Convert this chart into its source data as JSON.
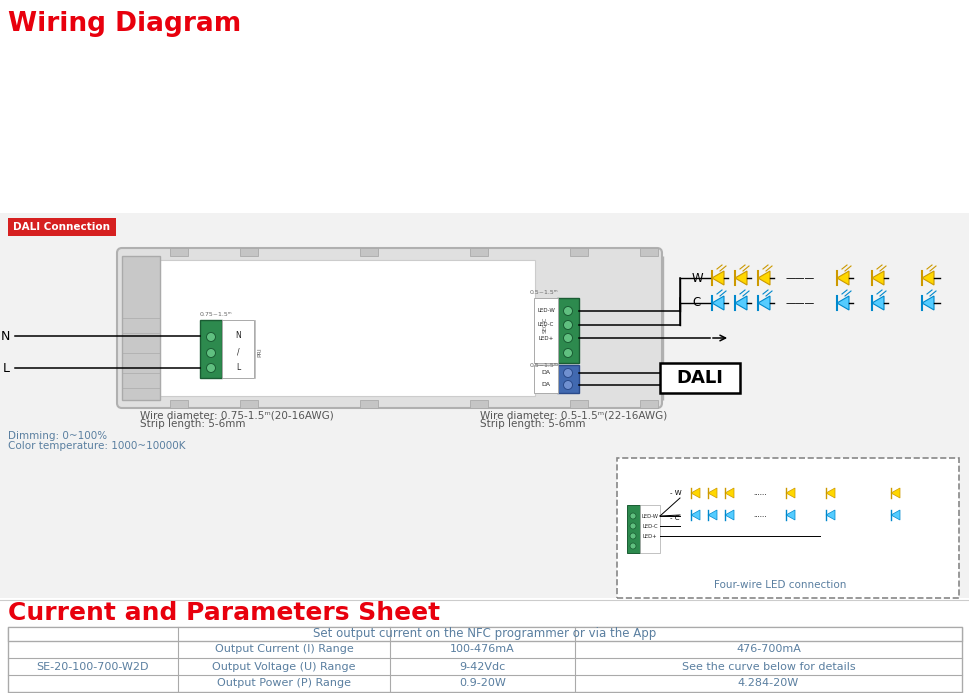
{
  "title_wiring": "Wiring Diagram",
  "title_params": "Current and Parameters Sheet",
  "title_color": "#e8000d",
  "bg_color": "#f0f0f0",
  "white": "#ffffff",
  "dali_badge_text": "DALI Connection",
  "dali_badge_bg": "#d62020",
  "wire_left_text1": "Wire diameter: 0.75-1.5ᵐ(20-16AWG)",
  "wire_left_text2": "Strip length: 5-6mm",
  "wire_right_text1": "Wire diameter: 0.5-1.5ᵐ(22-16AWG)",
  "wire_right_text2": "Strip length: 5-6mm",
  "dimming_text": "Dimming: 0~100%",
  "color_temp_text": "Color temperature: 1000~10000K",
  "four_wire_text": "Four-wire LED connection",
  "table_header": "Set output current on the NFC programmer or via the App",
  "table_row_label": "SE-20-100-700-W2D",
  "col1_label": "Output Current (I) Range",
  "col2_label": "Output Voltage (U) Range",
  "col3_label": "Output Power (P) Range",
  "col1_val1": "100-476mA",
  "col1_val2": "476-700mA",
  "col2_val1": "9-42Vdc",
  "col2_val2": "See the curve below for details",
  "col3_val1": "0.9-20W",
  "col3_val2": "4.284-20W",
  "text_color_table": "#5a7fa0",
  "N_label": "N",
  "L_label": "L",
  "W_label": "W",
  "C_label": "C",
  "DALI_label": "DALI"
}
